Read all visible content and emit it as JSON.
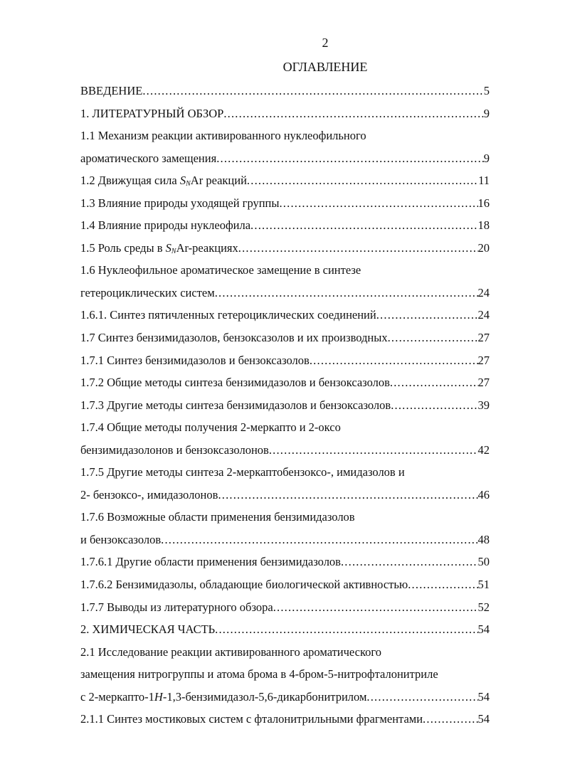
{
  "page_number": "2",
  "title": "ОГЛАВЛЕНИЕ",
  "toc": [
    {
      "parts": [
        {
          "t": "ВВЕДЕНИЕ"
        }
      ],
      "page": "5"
    },
    {
      "parts": [
        {
          "t": "1. ЛИТЕРАТУРНЫЙ ОБЗОР"
        }
      ],
      "page": "9"
    },
    {
      "parts": [
        {
          "t": "1.1 Механизм реакции активированного нуклеофильного"
        }
      ],
      "page": ""
    },
    {
      "parts": [
        {
          "t": "ароматического замещения"
        }
      ],
      "page": "9"
    },
    {
      "parts": [
        {
          "t": "1.2 Движущая сила "
        },
        {
          "t": "S",
          "i": true
        },
        {
          "t": "N",
          "sub": true
        },
        {
          "t": "Ar реакций"
        }
      ],
      "page": "11"
    },
    {
      "parts": [
        {
          "t": "1.3 Влияние природы уходящей группы"
        }
      ],
      "page": "16"
    },
    {
      "parts": [
        {
          "t": "1.4 Влияние природы нуклеофила"
        }
      ],
      "page": "18"
    },
    {
      "parts": [
        {
          "t": "1.5 Роль среды в "
        },
        {
          "t": "S",
          "i": true
        },
        {
          "t": "N",
          "sub": true
        },
        {
          "t": "Ar-реакциях"
        }
      ],
      "page": "20"
    },
    {
      "parts": [
        {
          "t": "1.6 Нуклеофильное ароматическое замещение в синтезе"
        }
      ],
      "page": ""
    },
    {
      "parts": [
        {
          "t": " гетероциклических систем"
        }
      ],
      "page": "24"
    },
    {
      "parts": [
        {
          "t": "1.6.1. Синтез пятичленных гетероциклических соединений"
        }
      ],
      "page": "24"
    },
    {
      "parts": [
        {
          "t": "1.7 Синтез бензимидазолов, бензоксазолов и их производных"
        }
      ],
      "page": "27"
    },
    {
      "parts": [
        {
          "t": "1.7.1 Синтез бензимидазолов и бензоксазолов"
        }
      ],
      "page": "27"
    },
    {
      "parts": [
        {
          "t": "1.7.2 Общие методы синтеза бензимидазолов и бензоксазолов"
        }
      ],
      "page": "27"
    },
    {
      "parts": [
        {
          "t": "1.7.3 Другие методы синтеза бензимидазолов и бензоксазолов"
        }
      ],
      "page": "39"
    },
    {
      "parts": [
        {
          "t": "1.7.4 Общие методы получения 2-меркапто и 2-оксо"
        }
      ],
      "page": ""
    },
    {
      "parts": [
        {
          "t": "бензимидазолонов и бензоксазолонов"
        }
      ],
      "page": "42"
    },
    {
      "parts": [
        {
          "t": "1.7.5 Другие методы синтеза 2-меркаптобензоксо-, имидазолов и"
        }
      ],
      "page": ""
    },
    {
      "parts": [
        {
          "t": "2- бензоксо-, имидазолонов"
        }
      ],
      "page": "46"
    },
    {
      "parts": [
        {
          "t": "1.7.6 Возможные области применения бензимидазолов"
        }
      ],
      "page": ""
    },
    {
      "parts": [
        {
          "t": "и бензоксазолов"
        }
      ],
      "page": "48"
    },
    {
      "parts": [
        {
          "t": "1.7.6.1 Другие области применения бензимидазолов"
        }
      ],
      "page": "50"
    },
    {
      "parts": [
        {
          "t": "1.7.6.2 Бензимидазолы, обладающие биологической активностью"
        }
      ],
      "page": "51"
    },
    {
      "parts": [
        {
          "t": "1.7.7 Выводы из литературного обзора"
        }
      ],
      "page": "52"
    },
    {
      "parts": [
        {
          "t": "2. ХИМИЧЕСКАЯ ЧАСТЬ"
        }
      ],
      "page": "54"
    },
    {
      "parts": [
        {
          "t": "2.1 Исследование реакции активированного ароматического"
        }
      ],
      "page": ""
    },
    {
      "parts": [
        {
          "t": "замещения нитрогруппы и атома брома в 4-бром-5-нитрофталонитриле"
        }
      ],
      "page": ""
    },
    {
      "parts": [
        {
          "t": " с 2-меркапто-1"
        },
        {
          "t": "H",
          "i": true
        },
        {
          "t": "-1,3-бензимидазол-5,6-дикарбонитрилом"
        }
      ],
      "page": "54"
    },
    {
      "parts": [
        {
          "t": "2.1.1 Синтез мостиковых систем с фталонитрильными фрагментами"
        }
      ],
      "page": "54"
    }
  ]
}
